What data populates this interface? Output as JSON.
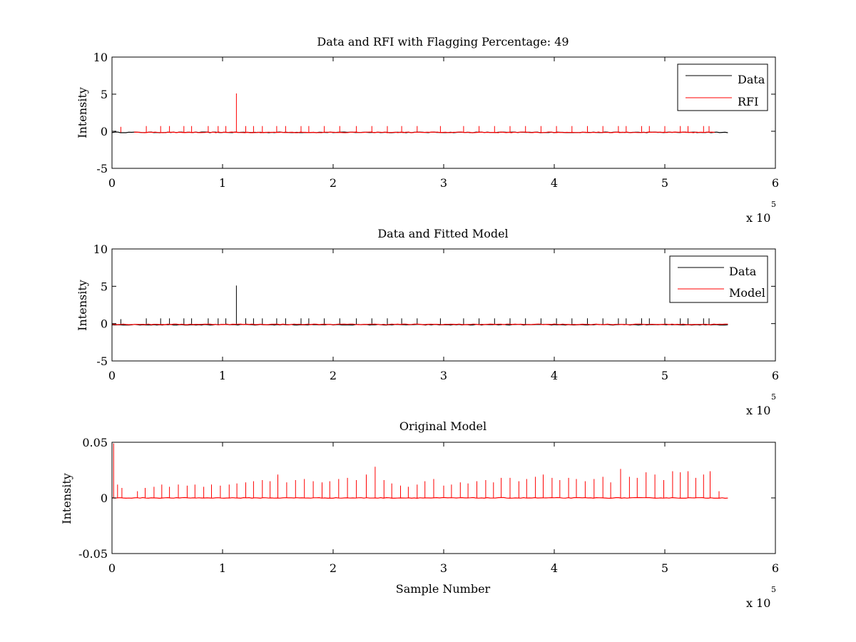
{
  "chart_data": [
    {
      "type": "line",
      "title": "Data and RFI with Flagging Percentage: 49",
      "xlabel": "",
      "ylabel": "Intensity",
      "xlim": [
        0,
        600000
      ],
      "ylim": [
        -5,
        10
      ],
      "xticks": [
        "0",
        "1",
        "2",
        "3",
        "4",
        "5",
        "6"
      ],
      "yticks": [
        "-5",
        "0",
        "5",
        "10"
      ],
      "x_exponent_label": "x 10",
      "x_exponent": "5",
      "legend": {
        "position": "top-right",
        "entries": [
          {
            "name": "Data",
            "color": "#000000"
          },
          {
            "name": "RFI",
            "color": "#ff0000"
          }
        ]
      },
      "series": [
        {
          "name": "Data",
          "color": "#000000",
          "baseline": -0.15,
          "x_start": 0,
          "x_end": 557000
        },
        {
          "name": "RFI",
          "color": "#ff0000",
          "baseline": -0.15,
          "x_start": 20000,
          "x_end": 545000,
          "spikes": [
            [
              8000,
              0.6
            ],
            [
              31000,
              0.7
            ],
            [
              44000,
              0.7
            ],
            [
              52000,
              0.7
            ],
            [
              65000,
              0.7
            ],
            [
              72000,
              0.7
            ],
            [
              87000,
              0.7
            ],
            [
              96000,
              0.7
            ],
            [
              103000,
              0.7
            ],
            [
              112500,
              5.1
            ],
            [
              121000,
              0.7
            ],
            [
              128000,
              0.7
            ],
            [
              136000,
              0.7
            ],
            [
              149000,
              0.7
            ],
            [
              157000,
              0.7
            ],
            [
              171000,
              0.7
            ],
            [
              178000,
              0.7
            ],
            [
              192000,
              0.7
            ],
            [
              206000,
              0.7
            ],
            [
              221000,
              0.7
            ],
            [
              235000,
              0.7
            ],
            [
              249000,
              0.7
            ],
            [
              262000,
              0.7
            ],
            [
              276000,
              0.7
            ],
            [
              297000,
              0.7
            ],
            [
              318000,
              0.7
            ],
            [
              332000,
              0.7
            ],
            [
              346000,
              0.7
            ],
            [
              360000,
              0.7
            ],
            [
              374000,
              0.7
            ],
            [
              388000,
              0.7
            ],
            [
              402000,
              0.7
            ],
            [
              416000,
              0.7
            ],
            [
              430000,
              0.7
            ],
            [
              444000,
              0.7
            ],
            [
              458000,
              0.7
            ],
            [
              465000,
              0.7
            ],
            [
              479000,
              0.7
            ],
            [
              486000,
              0.7
            ],
            [
              500000,
              0.7
            ],
            [
              514000,
              0.7
            ],
            [
              521000,
              0.7
            ],
            [
              535000,
              0.7
            ],
            [
              540000,
              0.7
            ]
          ]
        }
      ]
    },
    {
      "type": "line",
      "title": "Data and Fitted Model",
      "xlabel": "",
      "ylabel": "Intensity",
      "xlim": [
        0,
        600000
      ],
      "ylim": [
        -5,
        10
      ],
      "xticks": [
        "0",
        "1",
        "2",
        "3",
        "4",
        "5",
        "6"
      ],
      "yticks": [
        "-5",
        "0",
        "5",
        "10"
      ],
      "x_exponent_label": "x 10",
      "x_exponent": "5",
      "legend": {
        "position": "top-right",
        "entries": [
          {
            "name": "Data",
            "color": "#000000"
          },
          {
            "name": "Model",
            "color": "#ff0000"
          }
        ]
      },
      "series": [
        {
          "name": "Data",
          "color": "#000000",
          "baseline": -0.15,
          "x_start": 0,
          "x_end": 557000,
          "spikes": [
            [
              8000,
              0.6
            ],
            [
              31000,
              0.7
            ],
            [
              44000,
              0.7
            ],
            [
              52000,
              0.7
            ],
            [
              65000,
              0.7
            ],
            [
              72000,
              0.7
            ],
            [
              87000,
              0.7
            ],
            [
              96000,
              0.7
            ],
            [
              103000,
              0.7
            ],
            [
              112500,
              5.1
            ],
            [
              121000,
              0.7
            ],
            [
              128000,
              0.7
            ],
            [
              136000,
              0.7
            ],
            [
              149000,
              0.7
            ],
            [
              157000,
              0.7
            ],
            [
              171000,
              0.7
            ],
            [
              178000,
              0.7
            ],
            [
              192000,
              0.7
            ],
            [
              206000,
              0.7
            ],
            [
              221000,
              0.7
            ],
            [
              235000,
              0.7
            ],
            [
              249000,
              0.7
            ],
            [
              262000,
              0.7
            ],
            [
              276000,
              0.7
            ],
            [
              297000,
              0.7
            ],
            [
              318000,
              0.7
            ],
            [
              332000,
              0.7
            ],
            [
              346000,
              0.7
            ],
            [
              360000,
              0.7
            ],
            [
              374000,
              0.7
            ],
            [
              388000,
              0.7
            ],
            [
              402000,
              0.7
            ],
            [
              416000,
              0.7
            ],
            [
              430000,
              0.7
            ],
            [
              444000,
              0.7
            ],
            [
              458000,
              0.7
            ],
            [
              465000,
              0.7
            ],
            [
              479000,
              0.7
            ],
            [
              486000,
              0.7
            ],
            [
              500000,
              0.7
            ],
            [
              514000,
              0.7
            ],
            [
              521000,
              0.7
            ],
            [
              535000,
              0.7
            ],
            [
              540000,
              0.7
            ]
          ]
        },
        {
          "name": "Model",
          "color": "#ff0000",
          "baseline": -0.1,
          "x_start": 0,
          "x_end": 557000
        }
      ]
    },
    {
      "type": "line",
      "title": "Original Model",
      "xlabel": "Sample Number",
      "ylabel": "Intensity",
      "xlim": [
        0,
        600000
      ],
      "ylim": [
        -0.05,
        0.05
      ],
      "xticks": [
        "0",
        "1",
        "2",
        "3",
        "4",
        "5",
        "6"
      ],
      "yticks": [
        "-0.05",
        "0",
        "0.05"
      ],
      "x_exponent_label": "x 10",
      "x_exponent": "5",
      "series": [
        {
          "name": "",
          "color": "#ff0000",
          "baseline": 0.0,
          "x_start": 0,
          "x_end": 557000,
          "spikes": [
            [
              1500,
              0.049
            ],
            [
              5000,
              0.012
            ],
            [
              9000,
              0.009
            ],
            [
              23000,
              0.006
            ],
            [
              30000,
              0.009
            ],
            [
              38000,
              0.01
            ],
            [
              45000,
              0.012
            ],
            [
              52000,
              0.01
            ],
            [
              60000,
              0.012
            ],
            [
              68000,
              0.011
            ],
            [
              75000,
              0.012
            ],
            [
              83000,
              0.01
            ],
            [
              90000,
              0.012
            ],
            [
              98000,
              0.011
            ],
            [
              106000,
              0.012
            ],
            [
              113000,
              0.013
            ],
            [
              121000,
              0.014
            ],
            [
              128000,
              0.015
            ],
            [
              136000,
              0.016
            ],
            [
              143000,
              0.015
            ],
            [
              150000,
              0.021
            ],
            [
              158000,
              0.014
            ],
            [
              166000,
              0.016
            ],
            [
              174000,
              0.017
            ],
            [
              182000,
              0.015
            ],
            [
              190000,
              0.014
            ],
            [
              197000,
              0.015
            ],
            [
              205000,
              0.017
            ],
            [
              213000,
              0.018
            ],
            [
              221000,
              0.016
            ],
            [
              230000,
              0.021
            ],
            [
              238000,
              0.028
            ],
            [
              246000,
              0.016
            ],
            [
              253000,
              0.013
            ],
            [
              261000,
              0.011
            ],
            [
              268000,
              0.01
            ],
            [
              276000,
              0.012
            ],
            [
              283000,
              0.015
            ],
            [
              291000,
              0.017
            ],
            [
              300000,
              0.011
            ],
            [
              307000,
              0.012
            ],
            [
              315000,
              0.014
            ],
            [
              322000,
              0.013
            ],
            [
              330000,
              0.015
            ],
            [
              338000,
              0.016
            ],
            [
              345000,
              0.014
            ],
            [
              352000,
              0.018
            ],
            [
              360000,
              0.018
            ],
            [
              368000,
              0.015
            ],
            [
              375000,
              0.017
            ],
            [
              383000,
              0.019
            ],
            [
              390000,
              0.021
            ],
            [
              398000,
              0.018
            ],
            [
              405000,
              0.016
            ],
            [
              413000,
              0.018
            ],
            [
              420000,
              0.017
            ],
            [
              428000,
              0.015
            ],
            [
              436000,
              0.017
            ],
            [
              444000,
              0.019
            ],
            [
              451000,
              0.014
            ],
            [
              460000,
              0.026
            ],
            [
              468000,
              0.019
            ],
            [
              475000,
              0.018
            ],
            [
              483000,
              0.023
            ],
            [
              491000,
              0.021
            ],
            [
              499000,
              0.016
            ],
            [
              507000,
              0.024
            ],
            [
              514000,
              0.023
            ],
            [
              521000,
              0.024
            ],
            [
              528000,
              0.018
            ],
            [
              535000,
              0.021
            ],
            [
              541000,
              0.024
            ],
            [
              549000,
              0.006
            ]
          ]
        }
      ]
    }
  ]
}
